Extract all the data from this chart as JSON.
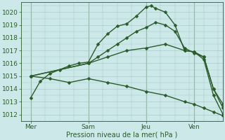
{
  "background_color": "#cce8e8",
  "plot_bg_color": "#cce8e8",
  "grid_color": "#aacaca",
  "line_color": "#2a5c2a",
  "xlabel": "Pression niveau de la mer( hPa )",
  "ylim": [
    1011.5,
    1020.8
  ],
  "yticks": [
    1012,
    1013,
    1014,
    1015,
    1016,
    1017,
    1018,
    1019,
    1020
  ],
  "xtick_labels": [
    "Mer",
    "Sam",
    "Jeu",
    "Ven"
  ],
  "xtick_positions": [
    2,
    14,
    26,
    36
  ],
  "xlim": [
    0,
    42
  ],
  "vline_positions": [
    2,
    14,
    26,
    36
  ],
  "lines": [
    {
      "x": [
        2,
        4,
        6,
        8,
        10,
        12,
        14,
        16,
        18,
        20,
        22,
        24,
        26,
        27,
        28,
        30,
        32,
        34,
        36,
        38,
        40,
        42
      ],
      "y": [
        1013.3,
        1014.6,
        1015.2,
        1015.5,
        1015.8,
        1016.0,
        1016.1,
        1017.5,
        1018.3,
        1018.9,
        1019.1,
        1019.7,
        1020.4,
        1020.5,
        1020.3,
        1020.0,
        1019.0,
        1017.0,
        1016.9,
        1016.5,
        1014.0,
        1012.8
      ]
    },
    {
      "x": [
        2,
        14,
        16,
        18,
        20,
        22,
        24,
        26,
        28,
        30,
        32,
        34,
        36,
        38,
        40,
        42
      ],
      "y": [
        1015.0,
        1016.0,
        1016.5,
        1017.0,
        1017.5,
        1018.0,
        1018.5,
        1018.8,
        1019.2,
        1019.0,
        1018.5,
        1017.2,
        1016.8,
        1016.5,
        1014.0,
        1012.5
      ]
    },
    {
      "x": [
        2,
        14,
        18,
        22,
        26,
        30,
        34,
        36,
        38,
        40,
        42
      ],
      "y": [
        1015.0,
        1016.0,
        1016.5,
        1017.0,
        1017.2,
        1017.5,
        1017.0,
        1016.9,
        1016.3,
        1013.5,
        1012.0
      ]
    },
    {
      "x": [
        2,
        6,
        10,
        14,
        18,
        22,
        26,
        30,
        34,
        36,
        38,
        40,
        42
      ],
      "y": [
        1015.0,
        1014.8,
        1014.5,
        1014.8,
        1014.5,
        1014.2,
        1013.8,
        1013.5,
        1013.0,
        1012.8,
        1012.5,
        1012.2,
        1011.9
      ]
    }
  ],
  "markersize": 2.5,
  "linewidth": 1.0
}
